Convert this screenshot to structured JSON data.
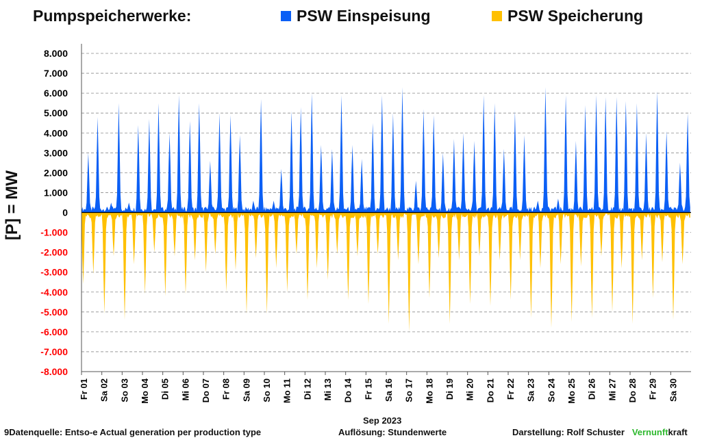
{
  "header": {
    "title": "Pumpspeicherwerke:"
  },
  "legend": [
    {
      "label": "PSW Einspeisung",
      "color": "#0b5ff5"
    },
    {
      "label": "PSW Speicherung",
      "color": "#ffc000"
    }
  ],
  "axis": {
    "y_title": "[P]  = MW",
    "month_label": "Sep 2023"
  },
  "footer": {
    "source": "9Datenquelle: Entso-e  Actual generation per production type",
    "resolution": "Auflösung: Stundenwerte",
    "author": "Darstellung:  Rolf Schuster",
    "brand_green": "Vernunft",
    "brand_black": "kraft"
  },
  "colors": {
    "positive_tick_color": "#000000",
    "negative_tick_color": "#ff0000",
    "brand_green": "#2db82d"
  },
  "chart_data": {
    "type": "area",
    "title": "Pumpspeicherwerke:",
    "ylabel": "[P]  = MW",
    "xlabel": "Sep 2023",
    "ylim": [
      -8000,
      8000
    ],
    "grid": true,
    "legend_position": "top",
    "y_ticks": [
      8000,
      7000,
      6000,
      5000,
      4000,
      3000,
      2000,
      1000,
      0,
      -1000,
      -2000,
      -3000,
      -4000,
      -5000,
      -6000,
      -7000,
      -8000
    ],
    "y_tick_labels": [
      "8.000",
      "7.000",
      "6.000",
      "5.000",
      "4.000",
      "3.000",
      "2.000",
      "1.000",
      "0",
      "-1.000",
      "-2.000",
      "-3.000",
      "-4.000",
      "-5.000",
      "-6.000",
      "-7.000",
      "-8.000"
    ],
    "x_tick_labels": [
      "Fr 01",
      "Sa 02",
      "So 03",
      "Mo 04",
      "Di 05",
      "Mi 06",
      "Do 07",
      "Fr 08",
      "Sa 09",
      "So 10",
      "Mo 11",
      "Di 12",
      "Mi 13",
      "Do 14",
      "Fr 15",
      "Sa 16",
      "So 17",
      "Mo 18",
      "Di 19",
      "Mi 20",
      "Do 21",
      "Fr 22",
      "Sa 23",
      "So 24",
      "Mo 25",
      "Di 26",
      "Mi 27",
      "Do 28",
      "Fr 29",
      "Sa 30"
    ],
    "resolution": "hourly",
    "series": [
      {
        "name": "PSW Einspeisung",
        "color": "#0b5ff5",
        "daily_peaks": [
          [
            [
              8,
              3000
            ],
            [
              19,
              4800
            ]
          ],
          [
            [
              11,
              500
            ],
            [
              20,
              5500
            ]
          ],
          [
            [
              8,
              500
            ],
            [
              19,
              4400
            ]
          ],
          [
            [
              8,
              4700
            ],
            [
              19,
              5500
            ]
          ],
          [
            [
              8,
              4000
            ],
            [
              19,
              5900
            ]
          ],
          [
            [
              8,
              4600
            ],
            [
              19,
              5500
            ]
          ],
          [
            [
              8,
              2600
            ],
            [
              19,
              5000
            ]
          ],
          [
            [
              8,
              4900
            ],
            [
              19,
              3900
            ]
          ],
          [
            [
              11,
              600
            ],
            [
              20,
              5700
            ]
          ],
          [
            [
              11,
              600
            ],
            [
              20,
              2200
            ]
          ],
          [
            [
              8,
              5100
            ],
            [
              19,
              5300
            ]
          ],
          [
            [
              8,
              6000
            ],
            [
              19,
              3400
            ]
          ],
          [
            [
              8,
              3200
            ],
            [
              19,
              5900
            ]
          ],
          [
            [
              8,
              3400
            ],
            [
              19,
              2700
            ]
          ],
          [
            [
              8,
              4500
            ],
            [
              19,
              5900
            ]
          ],
          [
            [
              8,
              5000
            ],
            [
              19,
              6300
            ]
          ],
          [
            [
              11,
              1600
            ],
            [
              20,
              5200
            ]
          ],
          [
            [
              8,
              4900
            ],
            [
              19,
              3000
            ]
          ],
          [
            [
              8,
              3700
            ],
            [
              19,
              4000
            ]
          ],
          [
            [
              8,
              3600
            ],
            [
              19,
              5900
            ]
          ],
          [
            [
              8,
              5500
            ],
            [
              19,
              3200
            ]
          ],
          [
            [
              8,
              5100
            ],
            [
              19,
              3900
            ]
          ],
          [
            [
              11,
              600
            ],
            [
              20,
              6300
            ]
          ],
          [
            [
              11,
              700
            ],
            [
              20,
              5900
            ]
          ],
          [
            [
              8,
              3600
            ],
            [
              19,
              5400
            ]
          ],
          [
            [
              8,
              5900
            ],
            [
              19,
              5800
            ]
          ],
          [
            [
              8,
              5800
            ],
            [
              19,
              5600
            ]
          ],
          [
            [
              8,
              5500
            ],
            [
              19,
              4000
            ]
          ],
          [
            [
              8,
              6100
            ],
            [
              19,
              4100
            ]
          ],
          [
            [
              11,
              2500
            ],
            [
              20,
              5000
            ]
          ]
        ]
      },
      {
        "name": "PSW Speicherung",
        "color": "#ffc000",
        "daily_troughs": [
          [
            [
              2,
              -3600
            ],
            [
              14,
              -3100
            ]
          ],
          [
            [
              3,
              -5100
            ],
            [
              14,
              -2200
            ]
          ],
          [
            [
              3,
              -5400
            ],
            [
              14,
              -2600
            ]
          ],
          [
            [
              3,
              -4100
            ],
            [
              14,
              -2000
            ]
          ],
          [
            [
              3,
              -4200
            ],
            [
              14,
              -2200
            ]
          ],
          [
            [
              3,
              -4100
            ],
            [
              14,
              -2400
            ]
          ],
          [
            [
              3,
              -3000
            ],
            [
              14,
              -2100
            ]
          ],
          [
            [
              3,
              -4000
            ],
            [
              14,
              -2900
            ]
          ],
          [
            [
              3,
              -5100
            ],
            [
              14,
              -2300
            ]
          ],
          [
            [
              3,
              -5100
            ],
            [
              14,
              -2800
            ]
          ],
          [
            [
              3,
              -4000
            ],
            [
              14,
              -2100
            ]
          ],
          [
            [
              3,
              -4400
            ],
            [
              14,
              -2800
            ]
          ],
          [
            [
              3,
              -3400
            ],
            [
              14,
              -2100
            ]
          ],
          [
            [
              3,
              -4400
            ],
            [
              14,
              -2200
            ]
          ],
          [
            [
              3,
              -4600
            ],
            [
              14,
              -2100
            ]
          ],
          [
            [
              3,
              -5600
            ],
            [
              14,
              -2400
            ]
          ],
          [
            [
              3,
              -6000
            ],
            [
              14,
              -2600
            ]
          ],
          [
            [
              3,
              -4300
            ],
            [
              14,
              -2300
            ]
          ],
          [
            [
              3,
              -5600
            ],
            [
              14,
              -2400
            ]
          ],
          [
            [
              3,
              -4600
            ],
            [
              14,
              -2200
            ]
          ],
          [
            [
              3,
              -4700
            ],
            [
              14,
              -2400
            ]
          ],
          [
            [
              3,
              -4400
            ],
            [
              14,
              -2400
            ]
          ],
          [
            [
              3,
              -5300
            ],
            [
              14,
              -2800
            ]
          ],
          [
            [
              3,
              -5800
            ],
            [
              14,
              -2600
            ]
          ],
          [
            [
              3,
              -5500
            ],
            [
              14,
              -2700
            ]
          ],
          [
            [
              3,
              -5300
            ],
            [
              14,
              -2200
            ]
          ],
          [
            [
              3,
              -5000
            ],
            [
              14,
              -2800
            ]
          ],
          [
            [
              3,
              -5600
            ],
            [
              14,
              -2400
            ]
          ],
          [
            [
              3,
              -4300
            ],
            [
              14,
              -2500
            ]
          ],
          [
            [
              3,
              -5400
            ],
            [
              14,
              -2600
            ]
          ]
        ]
      }
    ]
  }
}
